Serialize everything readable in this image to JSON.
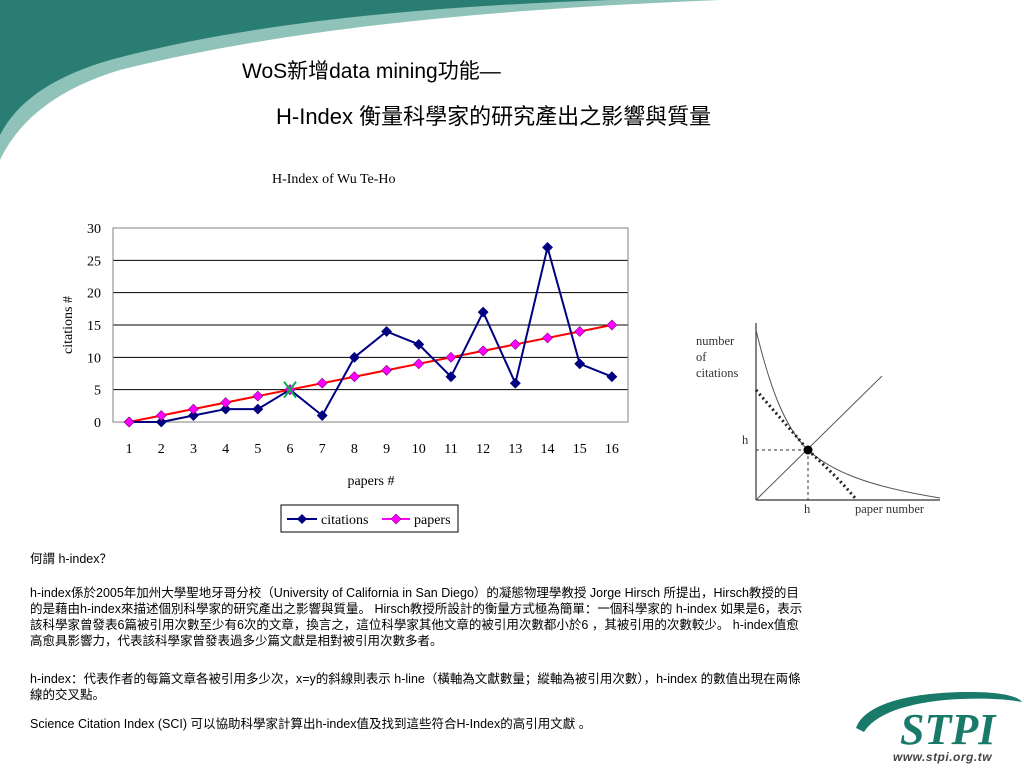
{
  "slide": {
    "title_line1": "WoS新增data mining功能—",
    "title_line2": "H-Index 衡量科學家的研究產出之影響與質量"
  },
  "chart_data": {
    "type": "line",
    "title": "H-Index of Wu Te-Ho",
    "xlabel": "papers #",
    "ylabel": "citations #",
    "categories": [
      1,
      2,
      3,
      4,
      5,
      6,
      7,
      8,
      9,
      10,
      11,
      12,
      13,
      14,
      15,
      16
    ],
    "ylim": [
      0,
      30
    ],
    "yticks": [
      0,
      5,
      10,
      15,
      20,
      25,
      30
    ],
    "grid": true,
    "legend": "bottom",
    "series": [
      {
        "name": "citations",
        "values": [
          0,
          0,
          1,
          2,
          2,
          5,
          1,
          10,
          14,
          12,
          7,
          17,
          6,
          27,
          9,
          7
        ],
        "color": "#000080"
      },
      {
        "name": "papers",
        "values": [
          0,
          1,
          2,
          3,
          4,
          5,
          6,
          7,
          8,
          9,
          10,
          11,
          12,
          13,
          14,
          15
        ],
        "color": "#ff00ff"
      }
    ],
    "trend_color": "#ff0000",
    "marker_color": "#00b050",
    "h_point": 6
  },
  "diagram": {
    "y_axis_label": [
      "number",
      "of",
      "citations"
    ],
    "h_label": "h",
    "x_h_label": "h",
    "x_axis_label": "paper number"
  },
  "text": {
    "question": "何謂 h-index？",
    "para1": "h-index係於2005年加州大學聖地牙哥分校（University of California in San Diego）的凝態物理學教授 Jorge Hirsch 所提出，Hirsch教授的目的是藉由h-index來描述個別科學家的研究產出之影響與質量。 Hirsch教授所設計的衡量方式極為簡單：一個科學家的 h-index 如果是6，表示該科學家曾發表6篇被引用次數至少有6次的文章，換言之，這位科學家其他文章的被引用次數都小於6 ，其被引用的次數較少。 h-index值愈高愈具影響力，代表該科學家曾發表過多少篇文獻是相對被引用次數多者。",
    "para2": "h-index：代表作者的每篇文章各被引用多少次，x=y的斜線則表示 h-line（橫軸為文獻數量；縱軸為被引用次數），h-index 的數值出現在兩條線的交叉點。",
    "para3": "Science Citation Index (SCI) 可以協助科學家計算出h-index值及找到這些符合H-Index的高引用文獻 。"
  },
  "logo": {
    "name": "STPI",
    "url": "www.stpi.org.tw",
    "color": "#1a7a6a"
  },
  "theme": {
    "banner_dark": "#1f6f66",
    "banner_light": "#8fc2b8"
  }
}
